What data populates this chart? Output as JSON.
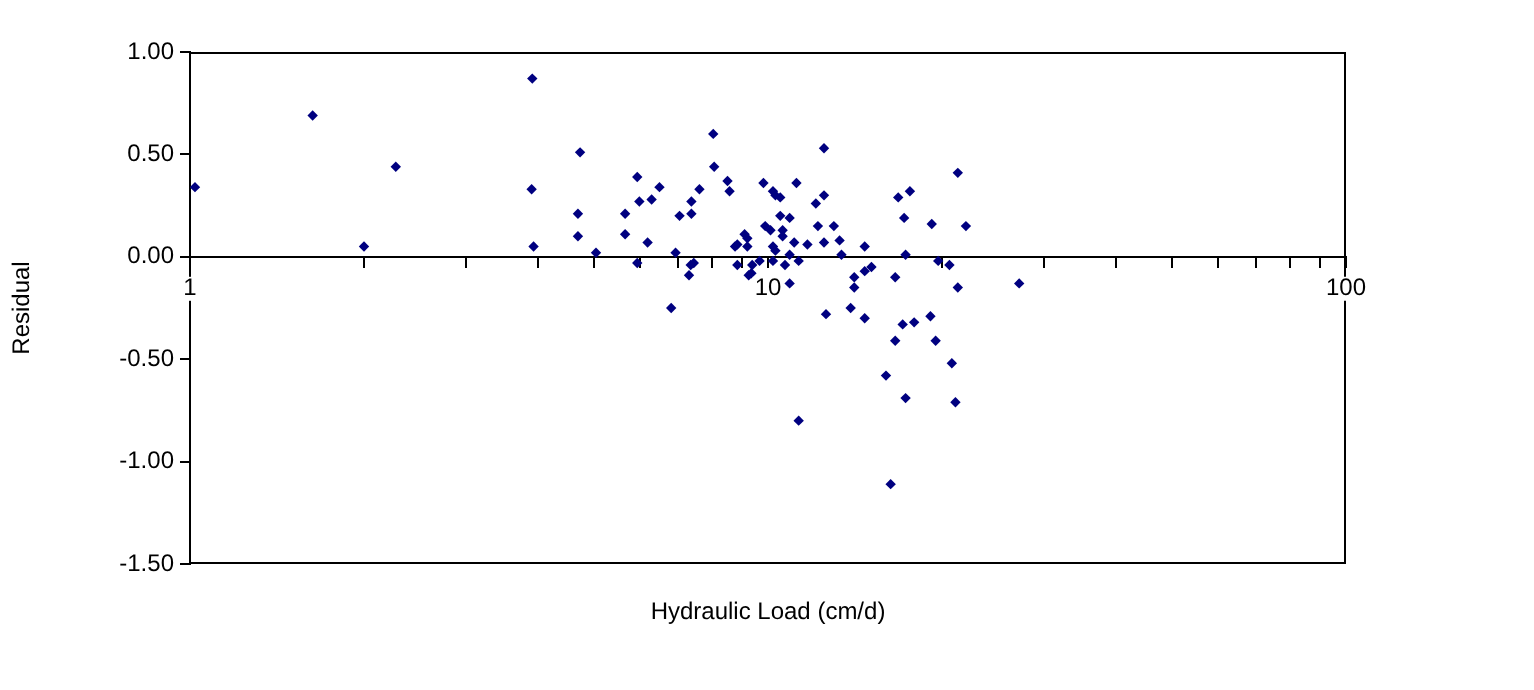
{
  "chart_data": {
    "type": "scatter",
    "xlabel": "Hydraulic Load (cm/d)",
    "ylabel": "Residual",
    "log": "x",
    "grid": false,
    "legend": false,
    "marker": "diamond",
    "xlim": [
      1,
      100
    ],
    "ylim": [
      -1.5,
      1
    ],
    "xticks": [
      1,
      {
        "value": 2,
        "label": null
      },
      {
        "value": 3,
        "label": null
      },
      {
        "value": 4,
        "label": null
      },
      {
        "value": 5,
        "label": null
      },
      {
        "value": 6,
        "label": null
      },
      {
        "value": 7,
        "label": null
      },
      {
        "value": 8,
        "label": null
      },
      {
        "value": 9,
        "label": null
      },
      10,
      {
        "value": 20,
        "label": null
      },
      {
        "value": 30,
        "label": null
      },
      {
        "value": 40,
        "label": null
      },
      {
        "value": 50,
        "label": null
      },
      {
        "value": 60,
        "label": null
      },
      {
        "value": 70,
        "label": null
      },
      {
        "value": 80,
        "label": null
      },
      {
        "value": 90,
        "label": null
      },
      100
    ],
    "yticks": [
      {
        "value": -1.5,
        "label": "-1.50"
      },
      {
        "value": -1,
        "label": "-1.00"
      },
      {
        "value": -0.5,
        "label": "-0.50"
      },
      {
        "value": 0,
        "label": "0.00"
      },
      {
        "value": 0.5,
        "label": "0.50"
      },
      {
        "value": 1,
        "label": "1.00"
      }
    ],
    "series": [
      {
        "color": "#000080",
        "x": [
          1.02,
          1.63,
          2.0,
          2.27,
          3.91,
          3.9,
          3.93,
          4.73,
          4.69,
          4.69,
          5.04,
          8.04,
          12.5,
          5.94,
          8.07,
          6.49,
          5.99,
          6.29,
          7.61,
          8.51,
          8.58,
          5.66,
          5.66,
          6.19,
          5.94,
          7.03,
          7.37,
          7.37,
          6.92,
          7.35,
          7.44,
          7.3,
          6.8,
          9.82,
          10.2,
          10.3,
          10.5,
          11.2,
          12.1,
          12.5,
          9.89,
          10.1,
          10.6,
          10.5,
          10.9,
          12.2,
          13.0,
          10.6,
          9.11,
          9.21,
          8.85,
          8.77,
          9.21,
          10.2,
          10.3,
          11.1,
          11.7,
          12.5,
          13.3,
          13.4,
          10.9,
          8.85,
          9.39,
          9.67,
          10.2,
          10.7,
          11.3,
          9.26,
          9.36,
          10.9,
          12.6,
          13.9,
          11.3,
          14.1,
          14.1,
          21.3,
          16.8,
          17.6,
          17.2,
          19.2,
          22.0,
          14.7,
          17.3,
          19.7,
          20.6,
          15.1,
          14.7,
          16.6,
          21.3,
          27.2,
          14.7,
          17.1,
          17.9,
          19.1,
          16.6,
          19.5,
          16.0,
          20.8,
          17.3,
          21.1,
          16.3
        ],
        "values": [
          0.34,
          0.69,
          0.05,
          0.44,
          0.87,
          0.33,
          0.05,
          0.51,
          0.21,
          0.1,
          0.02,
          0.6,
          0.53,
          0.39,
          0.44,
          0.34,
          0.27,
          0.28,
          0.33,
          0.37,
          0.32,
          0.21,
          0.11,
          0.07,
          -0.03,
          0.2,
          0.27,
          0.21,
          0.02,
          -0.04,
          -0.03,
          -0.09,
          -0.25,
          0.36,
          0.32,
          0.3,
          0.29,
          0.36,
          0.26,
          0.3,
          0.15,
          0.13,
          0.13,
          0.2,
          0.19,
          0.15,
          0.15,
          0.1,
          0.11,
          0.09,
          0.06,
          0.05,
          0.05,
          0.05,
          0.03,
          0.07,
          0.06,
          0.07,
          0.08,
          0.01,
          0.01,
          -0.04,
          -0.04,
          -0.02,
          -0.02,
          -0.04,
          -0.02,
          -0.09,
          -0.08,
          -0.13,
          -0.28,
          -0.25,
          -0.8,
          -0.1,
          -0.15,
          0.41,
          0.29,
          0.32,
          0.19,
          0.16,
          0.15,
          0.05,
          0.01,
          -0.02,
          -0.04,
          -0.05,
          -0.07,
          -0.1,
          -0.15,
          -0.13,
          -0.3,
          -0.33,
          -0.32,
          -0.29,
          -0.41,
          -0.41,
          -0.58,
          -0.52,
          -0.69,
          -0.71,
          -1.11
        ]
      }
    ]
  }
}
